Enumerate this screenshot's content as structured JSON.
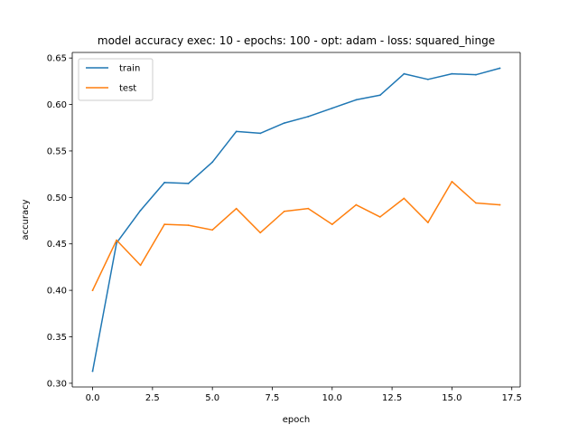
{
  "chart_data": {
    "type": "line",
    "title": "model accuracy exec: 10 - epochs: 100 - opt: adam - loss: squared_hinge",
    "xlabel": "epoch",
    "ylabel": "accuracy",
    "x": [
      0,
      1,
      2,
      3,
      4,
      5,
      6,
      7,
      8,
      9,
      10,
      11,
      12,
      13,
      14,
      15,
      16,
      17
    ],
    "xlim": [
      -0.85,
      17.85
    ],
    "ylim": [
      0.296,
      0.656
    ],
    "xticks": [
      0,
      2.5,
      5,
      7.5,
      10,
      12.5,
      15,
      17.5
    ],
    "xtick_labels": [
      "0.0",
      "2.5",
      "5.0",
      "7.5",
      "10.0",
      "12.5",
      "15.0",
      "17.5"
    ],
    "yticks": [
      0.3,
      0.35,
      0.4,
      0.45,
      0.5,
      0.55,
      0.6,
      0.65
    ],
    "ytick_labels": [
      "0.30",
      "0.35",
      "0.40",
      "0.45",
      "0.50",
      "0.55",
      "0.60",
      "0.65"
    ],
    "grid": false,
    "legend_position": "top-left",
    "series": [
      {
        "name": "train",
        "color": "#1f77b4",
        "values": [
          0.313,
          0.451,
          0.486,
          0.516,
          0.515,
          0.538,
          0.571,
          0.569,
          0.58,
          0.587,
          0.596,
          0.605,
          0.61,
          0.633,
          0.627,
          0.633,
          0.632,
          0.639
        ]
      },
      {
        "name": "test",
        "color": "#ff7f0e",
        "values": [
          0.4,
          0.454,
          0.427,
          0.471,
          0.47,
          0.465,
          0.488,
          0.462,
          0.485,
          0.488,
          0.471,
          0.492,
          0.479,
          0.499,
          0.473,
          0.517,
          0.494,
          0.492
        ]
      }
    ]
  }
}
